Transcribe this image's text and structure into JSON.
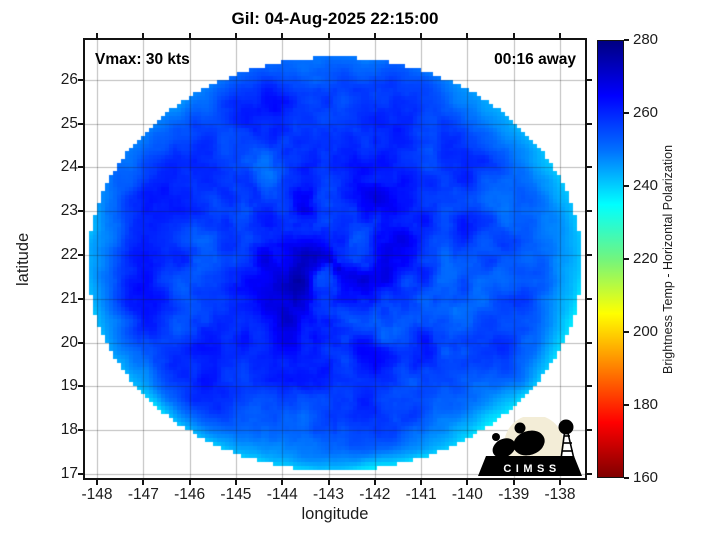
{
  "title": "Gil: 04-Aug-2025 22:15:00",
  "annotations": {
    "vmax_label": "Vmax: 30 kts",
    "time_away_label": "00:16 away"
  },
  "axes": {
    "xlabel": "longitude",
    "ylabel": "latitude",
    "x_ticks": [
      -148,
      -147,
      -146,
      -145,
      -144,
      -143,
      -142,
      -141,
      -140,
      -139,
      -138
    ],
    "y_ticks": [
      17,
      18,
      19,
      20,
      21,
      22,
      23,
      24,
      25,
      26
    ],
    "x_range": [
      -148.26,
      -137.46
    ],
    "y_range": [
      16.91,
      26.91
    ],
    "grid": true
  },
  "colorbar": {
    "label": "Brightness Temp - Horizontal Polarization",
    "min": 160,
    "max": 280,
    "ticks": [
      160,
      180,
      200,
      220,
      240,
      260,
      280
    ],
    "stops": [
      {
        "v": 280,
        "c": "#000082"
      },
      {
        "v": 265,
        "c": "#0000ff"
      },
      {
        "v": 250,
        "c": "#0070ff"
      },
      {
        "v": 235,
        "c": "#00ffff"
      },
      {
        "v": 220,
        "c": "#72f57e"
      },
      {
        "v": 205,
        "c": "#ffff00"
      },
      {
        "v": 190,
        "c": "#ff8000"
      },
      {
        "v": 175,
        "c": "#ff0000"
      },
      {
        "v": 160,
        "c": "#800000"
      }
    ]
  },
  "logo": {
    "text": "CIMSS"
  },
  "chart_data": {
    "type": "heatmap",
    "title": "Gil: 04-Aug-2025 22:15:00",
    "subtitle_annotations": [
      "Vmax: 30 kts",
      "00:16 away"
    ],
    "xlabel": "longitude",
    "ylabel": "latitude",
    "x_range": [
      -148.26,
      -137.46
    ],
    "y_range": [
      16.91,
      26.91
    ],
    "x_ticks": [
      -148,
      -147,
      -146,
      -145,
      -144,
      -143,
      -142,
      -141,
      -140,
      -139,
      -138
    ],
    "y_ticks": [
      17,
      18,
      19,
      20,
      21,
      22,
      23,
      24,
      25,
      26
    ],
    "grid": true,
    "background": "white",
    "colorbar_label": "Brightness Temp - Horizontal Polarization",
    "colorbar_range": [
      160,
      280
    ],
    "colorbar_ticks": [
      160,
      180,
      200,
      220,
      240,
      260,
      280
    ],
    "colormap": "jet reversed (280 K = dark navy blue, 235 K = cyan, 205 K = yellow, 160 K = dark red)",
    "swath": {
      "shape": "circular microwave swath",
      "center_lon": -142.9,
      "center_lat": 21.8,
      "radius_lon_deg": 5.33,
      "radius_lat_deg": 4.73
    },
    "field_regions": [
      {
        "region": "inner core / eye swirls (lon -144.5 to -141.5, lat 20 to 23)",
        "approx_temp_K": 272
      },
      {
        "region": "general swath disk",
        "approx_temp_K": 260
      },
      {
        "region": "east sector (lon -140.5 to -137.8, lat 19 to 24)",
        "approx_temp_K": 251
      },
      {
        "region": "swath rim, brightest to south and southwest",
        "approx_temp_K": 242
      }
    ],
    "render": {
      "cx": 250,
      "cy": 224,
      "rx": 247,
      "ry": 207,
      "base": 258.5,
      "tmin": 160,
      "tmax": 280,
      "seed_a": 11,
      "seed_b": 29,
      "lowres_w": 125,
      "lowres_h": 110
    }
  }
}
